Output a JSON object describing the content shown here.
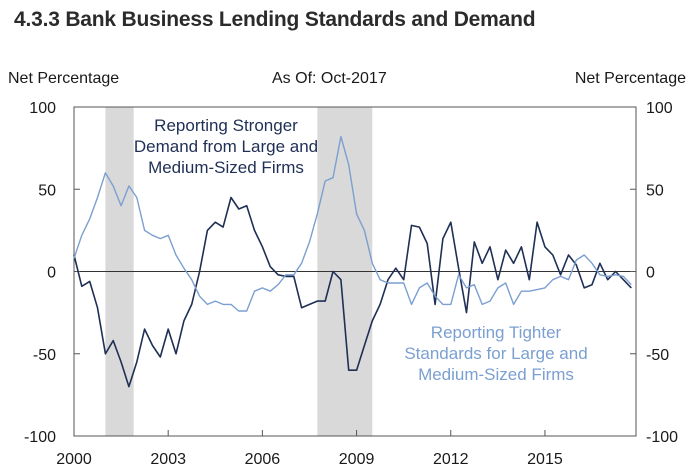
{
  "title": "4.3.3 Bank Business Lending Standards and Demand",
  "left_axis_label": "Net Percentage",
  "right_axis_label": "Net Percentage",
  "as_of": "As Of: Oct-2017",
  "colors": {
    "demand": "#1f2f55",
    "standards": "#7b9fd1",
    "recession": "#d9d9d9",
    "text": "#1a1a1a"
  },
  "chart_data": {
    "type": "line",
    "xlim": [
      2000,
      2017.9
    ],
    "ylim": [
      -100,
      100
    ],
    "x_ticks": [
      2000,
      2003,
      2006,
      2009,
      2012,
      2015
    ],
    "y_ticks": [
      100,
      50,
      0,
      -50,
      -100
    ],
    "recessions": [
      [
        2001.0,
        2001.9
      ],
      [
        2007.75,
        2009.5
      ]
    ],
    "annotations": [
      {
        "series": "demand",
        "lines": [
          "Reporting Stronger",
          "Demand from Large and",
          "Medium-Sized Firms"
        ]
      },
      {
        "series": "standards",
        "lines": [
          "Reporting Tighter",
          "Standards for Large and",
          "Medium-Sized Firms"
        ]
      }
    ],
    "series": [
      {
        "key": "demand",
        "x": [
          2000.0,
          2000.25,
          2000.5,
          2000.75,
          2001.0,
          2001.25,
          2001.5,
          2001.75,
          2002.0,
          2002.25,
          2002.5,
          2002.75,
          2003.0,
          2003.25,
          2003.5,
          2003.75,
          2004.0,
          2004.25,
          2004.5,
          2004.75,
          2005.0,
          2005.25,
          2005.5,
          2005.75,
          2006.0,
          2006.25,
          2006.5,
          2006.75,
          2007.0,
          2007.25,
          2007.5,
          2007.75,
          2008.0,
          2008.25,
          2008.5,
          2008.75,
          2009.0,
          2009.25,
          2009.5,
          2009.75,
          2010.0,
          2010.25,
          2010.5,
          2010.75,
          2011.0,
          2011.25,
          2011.5,
          2011.75,
          2012.0,
          2012.25,
          2012.5,
          2012.75,
          2013.0,
          2013.25,
          2013.5,
          2013.75,
          2014.0,
          2014.25,
          2014.5,
          2014.75,
          2015.0,
          2015.25,
          2015.5,
          2015.75,
          2016.0,
          2016.25,
          2016.5,
          2016.75,
          2017.0,
          2017.25,
          2017.5,
          2017.75
        ],
        "y": [
          10,
          -9,
          -6,
          -22,
          -50,
          -42,
          -55,
          -70,
          -55,
          -35,
          -45,
          -52,
          -35,
          -50,
          -30,
          -20,
          0,
          25,
          30,
          27,
          45,
          38,
          40,
          25,
          15,
          3,
          -2,
          -3,
          -3,
          -22,
          -20,
          -18,
          -18,
          0,
          -5,
          -60,
          -60,
          -45,
          -30,
          -20,
          -5,
          2,
          -5,
          28,
          27,
          17,
          -20,
          20,
          30,
          2,
          -25,
          18,
          5,
          15,
          -5,
          13,
          5,
          15,
          -5,
          30,
          15,
          10,
          -2,
          10,
          4,
          -10,
          -8,
          5,
          -5,
          0,
          -5,
          -10
        ]
      },
      {
        "key": "standards",
        "x": [
          2000.0,
          2000.25,
          2000.5,
          2000.75,
          2001.0,
          2001.25,
          2001.5,
          2001.75,
          2002.0,
          2002.25,
          2002.5,
          2002.75,
          2003.0,
          2003.25,
          2003.5,
          2003.75,
          2004.0,
          2004.25,
          2004.5,
          2004.75,
          2005.0,
          2005.25,
          2005.5,
          2005.75,
          2006.0,
          2006.25,
          2006.5,
          2006.75,
          2007.0,
          2007.25,
          2007.5,
          2007.75,
          2008.0,
          2008.25,
          2008.5,
          2008.75,
          2009.0,
          2009.25,
          2009.5,
          2009.75,
          2010.0,
          2010.25,
          2010.5,
          2010.75,
          2011.0,
          2011.25,
          2011.5,
          2011.75,
          2012.0,
          2012.25,
          2012.5,
          2012.75,
          2013.0,
          2013.25,
          2013.5,
          2013.75,
          2014.0,
          2014.25,
          2014.5,
          2014.75,
          2015.0,
          2015.25,
          2015.5,
          2015.75,
          2016.0,
          2016.25,
          2016.5,
          2016.75,
          2017.0,
          2017.25,
          2017.5,
          2017.75
        ],
        "y": [
          8,
          22,
          32,
          45,
          60,
          52,
          40,
          52,
          45,
          25,
          22,
          20,
          22,
          10,
          2,
          -5,
          -15,
          -20,
          -18,
          -20,
          -20,
          -24,
          -24,
          -12,
          -10,
          -12,
          -8,
          -2,
          -2,
          5,
          18,
          35,
          55,
          57,
          82,
          65,
          35,
          25,
          5,
          -5,
          -7,
          -7,
          -7,
          -20,
          -10,
          -7,
          -15,
          -20,
          -20,
          -2,
          -10,
          -8,
          -20,
          -18,
          -10,
          -7,
          -20,
          -12,
          -12,
          -11,
          -10,
          -5,
          -3,
          -5,
          7,
          10,
          5,
          -2,
          -3,
          -2,
          -3,
          -8
        ]
      }
    ]
  }
}
